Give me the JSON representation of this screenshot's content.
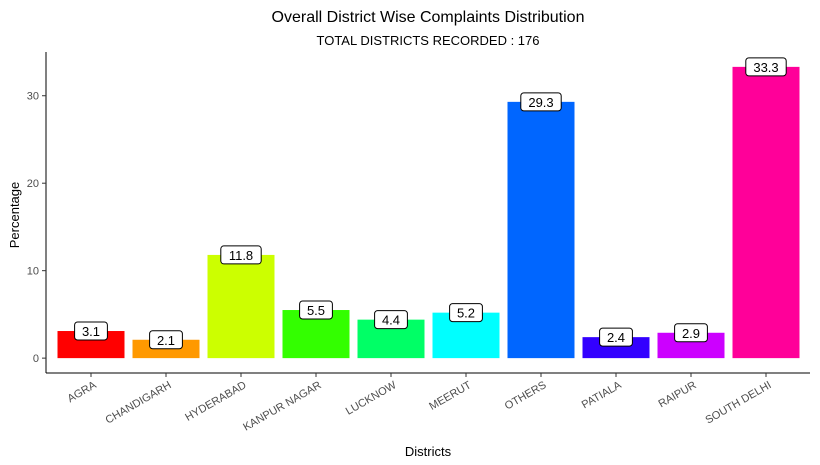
{
  "chart_data": {
    "type": "bar",
    "title": "Overall District Wise Complaints Distribution",
    "subtitle": "TOTAL DISTRICTS RECORDED : 176",
    "xlabel": "Districts",
    "ylabel": "Percentage",
    "ylim": [
      -1.7,
      35
    ],
    "yticks": [
      0,
      10,
      20,
      30
    ],
    "grid": false,
    "legend": "none",
    "categories": [
      "AGRA",
      "CHANDIGARH",
      "HYDERABAD",
      "KANPUR NAGAR",
      "LUCKNOW",
      "MEERUT",
      "OTHERS",
      "PATIALA",
      "RAIPUR",
      "SOUTH DELHI"
    ],
    "values": [
      3.1,
      2.1,
      11.8,
      5.5,
      4.4,
      5.2,
      29.3,
      2.4,
      2.9,
      33.3
    ],
    "labels": [
      "3.1",
      "2.1",
      "11.8",
      "5.5",
      "4.4",
      "5.2",
      "29.3",
      "2.4",
      "2.9",
      "33.3"
    ],
    "colors": [
      "#FF0000",
      "#FF9900",
      "#CCFF00",
      "#33FF00",
      "#00FF66",
      "#00FFFF",
      "#0066FF",
      "#3300FF",
      "#CC00FF",
      "#FF0099"
    ]
  }
}
